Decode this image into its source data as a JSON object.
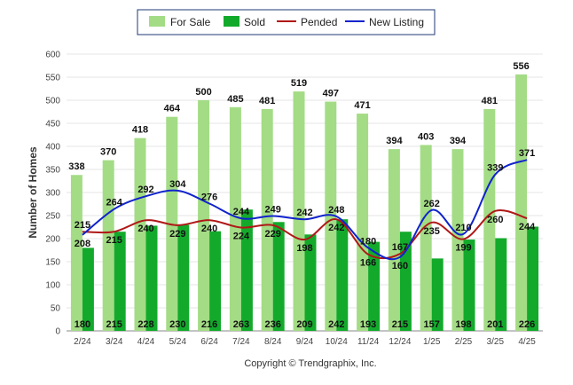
{
  "chart_data": {
    "type": "bar",
    "categories": [
      "2/24",
      "3/24",
      "4/24",
      "5/24",
      "6/24",
      "7/24",
      "8/24",
      "9/24",
      "10/24",
      "11/24",
      "12/24",
      "1/25",
      "2/25",
      "3/25",
      "4/25"
    ],
    "series": [
      {
        "name": "For Sale",
        "type": "bar",
        "color": "#a3dc85",
        "values": [
          338,
          370,
          418,
          464,
          500,
          485,
          481,
          519,
          497,
          471,
          394,
          403,
          394,
          481,
          556
        ]
      },
      {
        "name": "Sold",
        "type": "bar",
        "color": "#13aa2c",
        "values": [
          180,
          215,
          228,
          230,
          216,
          263,
          236,
          209,
          242,
          193,
          215,
          157,
          198,
          201,
          226
        ]
      },
      {
        "name": "Pended",
        "type": "line",
        "color": "#b01818",
        "values": [
          215,
          215,
          240,
          229,
          240,
          224,
          229,
          198,
          242,
          166,
          167,
          235,
          199,
          260,
          244
        ]
      },
      {
        "name": "New Listing",
        "type": "line",
        "color": "#1023cc",
        "values": [
          208,
          264,
          292,
          304,
          276,
          244,
          249,
          242,
          248,
          180,
          160,
          262,
          210,
          339,
          371
        ]
      }
    ],
    "ylabel": "Number of Homes",
    "ylim": [
      0,
      600
    ],
    "yticks": [
      0,
      50,
      100,
      150,
      200,
      250,
      300,
      350,
      400,
      450,
      500,
      550,
      600
    ],
    "grid": true,
    "legend_position": "top-center"
  },
  "footer": {
    "copyright": "Copyright © Trendgraphix, Inc."
  }
}
